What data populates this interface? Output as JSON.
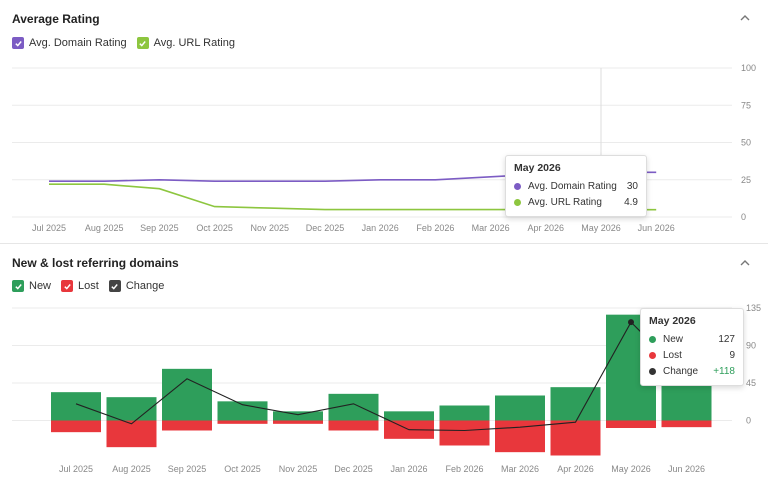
{
  "top": {
    "title": "Average Rating",
    "legend": [
      {
        "label": "Avg. Domain Rating",
        "color": "#7c5cc4"
      },
      {
        "label": "Avg. URL Rating",
        "color": "#8dc63f"
      }
    ],
    "tooltip": {
      "title": "May 2026",
      "rows": [
        {
          "label": "Avg. Domain Rating",
          "value": "30",
          "color": "#7c5cc4"
        },
        {
          "label": "Avg. URL Rating",
          "value": "4.9",
          "color": "#8dc63f"
        }
      ]
    }
  },
  "bottom": {
    "title": "New & lost referring domains",
    "legend": [
      {
        "label": "New",
        "color": "#2e9e5b"
      },
      {
        "label": "Lost",
        "color": "#e8373c"
      },
      {
        "label": "Change",
        "color": "#444444"
      }
    ],
    "tooltip": {
      "title": "May 2026",
      "rows": [
        {
          "label": "New",
          "value": "127",
          "color": "#2e9e5b"
        },
        {
          "label": "Lost",
          "value": "9",
          "color": "#e8373c"
        },
        {
          "label": "Change",
          "value": "+118",
          "color": "#333333",
          "value_color": "#2e9e5b"
        }
      ]
    }
  },
  "chart_data": [
    {
      "type": "line",
      "title": "Average Rating",
      "categories": [
        "Jul 2025",
        "Aug 2025",
        "Sep 2025",
        "Oct 2025",
        "Nov 2025",
        "Dec 2025",
        "Jan 2026",
        "Feb 2026",
        "Mar 2026",
        "Apr 2026",
        "May 2026",
        "Jun 2026"
      ],
      "y_ticks": [
        "100",
        "75",
        "50",
        "25",
        "0"
      ],
      "ylim": [
        0,
        100
      ],
      "series": [
        {
          "name": "Avg. Domain Rating",
          "color": "#7c5cc4",
          "values": [
            24,
            24,
            25,
            24,
            24,
            24,
            25,
            25,
            27,
            29,
            30,
            30
          ]
        },
        {
          "name": "Avg. URL Rating",
          "color": "#8dc63f",
          "values": [
            22,
            22,
            19,
            7,
            6,
            5,
            5,
            5,
            5,
            5,
            4.9,
            4.9
          ]
        }
      ],
      "highlight": "May 2026",
      "grid": true
    },
    {
      "type": "bar",
      "title": "New & lost referring domains",
      "categories": [
        "Jul 2025",
        "Aug 2025",
        "Sep 2025",
        "Oct 2025",
        "Nov 2025",
        "Dec 2025",
        "Jan 2026",
        "Feb 2026",
        "Mar 2026",
        "Apr 2026",
        "May 2026",
        "Jun 2026"
      ],
      "y_ticks": [
        "135",
        "90",
        "45",
        "0"
      ],
      "ylim": [
        -45,
        135
      ],
      "series": [
        {
          "name": "New",
          "color": "#2e9e5b",
          "values": [
            34,
            28,
            62,
            23,
            11,
            32,
            11,
            18,
            30,
            40,
            127,
            60
          ]
        },
        {
          "name": "Lost",
          "color": "#e8373c",
          "values": [
            -14,
            -32,
            -12,
            -4,
            -4,
            -12,
            -22,
            -30,
            -38,
            -42,
            -9,
            -8
          ]
        },
        {
          "name": "Change",
          "color": "#222222",
          "values": [
            20,
            -4,
            50,
            19,
            7,
            20,
            -11,
            -12,
            -8,
            -2,
            118,
            52
          ]
        }
      ],
      "highlight": "May 2026",
      "grid": true
    }
  ]
}
